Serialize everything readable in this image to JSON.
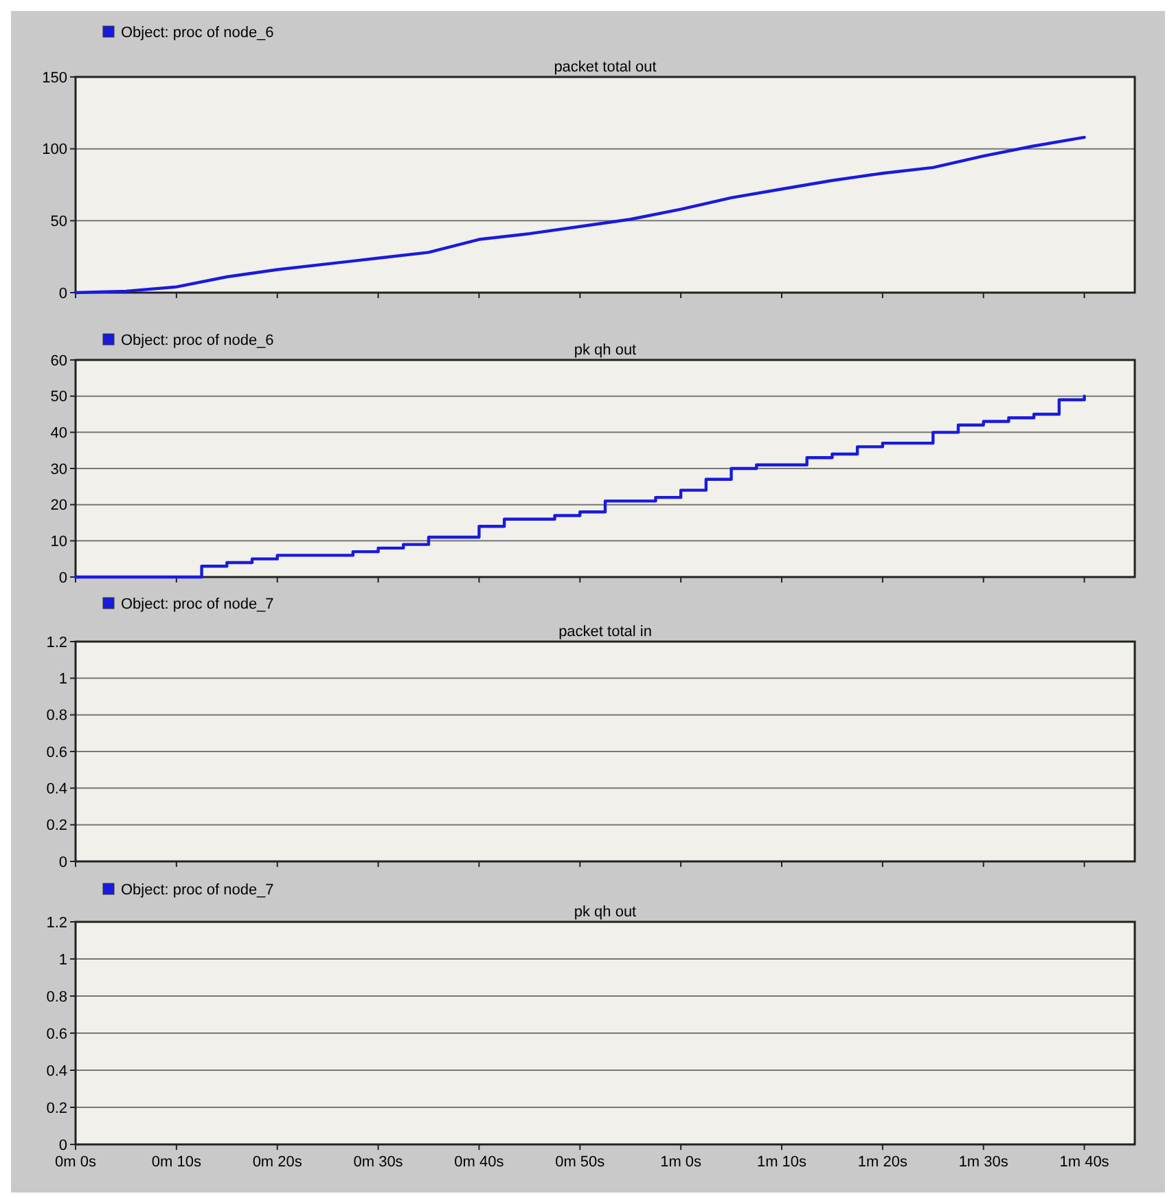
{
  "chart_data": [
    {
      "type": "line",
      "title": "packet total out",
      "categories": [
        null,
        null,
        null,
        null,
        null,
        null,
        null,
        null,
        null,
        null,
        null,
        null,
        null,
        null,
        null,
        null,
        null,
        null,
        null,
        null,
        null
      ],
      "ylim": [
        0,
        150
      ],
      "yticks": [
        0,
        50,
        100,
        150
      ],
      "grid": "y",
      "legend": "top left",
      "tick_labels": "y",
      "series": [
        {
          "name": "Object: proc of node_6",
          "color": "#1a1adc",
          "values": [
            0,
            1,
            4,
            11,
            16,
            20,
            24,
            28,
            37,
            41,
            46,
            51,
            58,
            66,
            72,
            78,
            83,
            87,
            95,
            102,
            108
          ]
        }
      ]
    },
    {
      "type": "step",
      "title": "pk qh out",
      "categories": [
        null,
        null,
        null,
        null,
        null,
        null,
        null,
        null,
        null,
        null,
        null,
        null,
        null,
        null,
        null,
        null,
        null,
        null,
        null,
        null,
        null,
        null,
        null,
        null,
        null,
        null,
        null,
        null,
        null,
        null,
        null,
        null,
        null,
        null,
        null,
        null,
        null,
        null,
        null,
        null,
        null
      ],
      "ylim": [
        0,
        60
      ],
      "yticks": [
        0,
        10,
        20,
        30,
        40,
        50,
        60
      ],
      "grid": "y",
      "legend": "top left",
      "tick_labels": "y",
      "series": [
        {
          "name": "Object: proc of node_6",
          "color": "#1a1adc",
          "values": [
            0,
            0,
            0,
            0,
            0,
            3,
            4,
            5,
            6,
            6,
            6,
            7,
            8,
            9,
            11,
            11,
            14,
            16,
            16,
            17,
            18,
            21,
            21,
            22,
            24,
            27,
            30,
            31,
            31,
            33,
            34,
            36,
            37,
            37,
            40,
            42,
            43,
            44,
            45,
            49,
            50
          ]
        }
      ]
    },
    {
      "type": "line",
      "title": "packet total in",
      "categories": [
        null,
        null,
        null,
        null,
        null,
        null,
        null,
        null,
        null,
        null,
        null
      ],
      "ylim": [
        0,
        1.2
      ],
      "yticks": [
        0,
        0.2,
        0.4,
        0.6,
        0.8,
        1,
        1.2
      ],
      "grid": "y",
      "legend": "top left",
      "tick_labels": "y",
      "series": [
        {
          "name": "Object: proc of node_7",
          "color": "#1a1adc",
          "values": [
            null,
            null,
            null,
            null,
            null,
            null,
            null,
            null,
            null,
            null,
            null
          ]
        }
      ]
    },
    {
      "type": "line",
      "title": "pk qh out",
      "categories": [
        "0m 0s",
        "0m 10s",
        "0m 20s",
        "0m 30s",
        "0m 40s",
        "0m 50s",
        "1m 0s",
        "1m 10s",
        "1m 20s",
        "1m 30s",
        "1m 40s"
      ],
      "ylim": [
        0,
        1.2
      ],
      "yticks": [
        0,
        0.2,
        0.4,
        0.6,
        0.8,
        1,
        1.2
      ],
      "grid": "y",
      "legend": "top left",
      "series": [
        {
          "name": "Object: proc of node_7",
          "color": "#1a1adc",
          "values": [
            null,
            null,
            null,
            null,
            null,
            null,
            null,
            null,
            null,
            null,
            null
          ]
        }
      ]
    }
  ]
}
